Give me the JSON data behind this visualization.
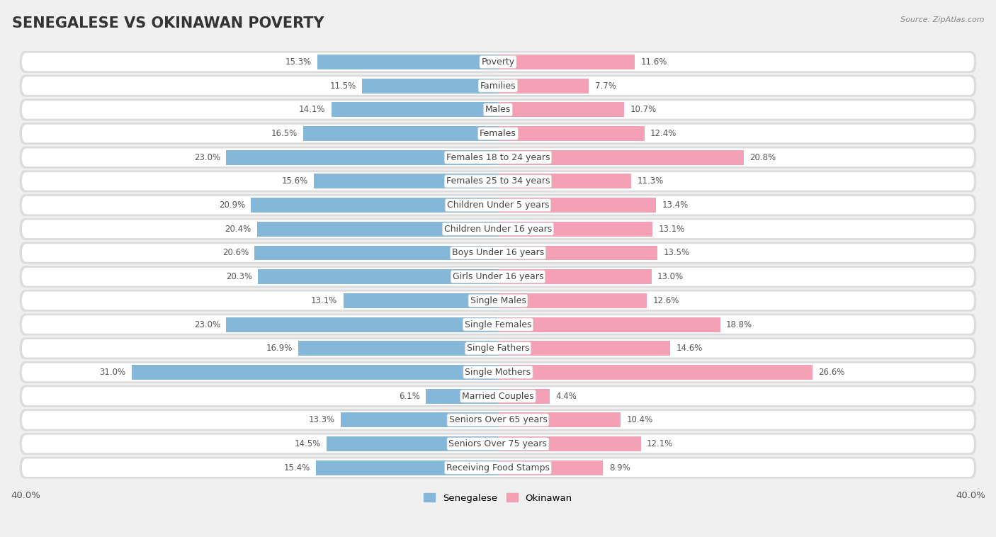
{
  "title": "SENEGALESE VS OKINAWAN POVERTY",
  "source": "Source: ZipAtlas.com",
  "categories": [
    "Poverty",
    "Families",
    "Males",
    "Females",
    "Females 18 to 24 years",
    "Females 25 to 34 years",
    "Children Under 5 years",
    "Children Under 16 years",
    "Boys Under 16 years",
    "Girls Under 16 years",
    "Single Males",
    "Single Females",
    "Single Fathers",
    "Single Mothers",
    "Married Couples",
    "Seniors Over 65 years",
    "Seniors Over 75 years",
    "Receiving Food Stamps"
  ],
  "senegalese": [
    15.3,
    11.5,
    14.1,
    16.5,
    23.0,
    15.6,
    20.9,
    20.4,
    20.6,
    20.3,
    13.1,
    23.0,
    16.9,
    31.0,
    6.1,
    13.3,
    14.5,
    15.4
  ],
  "okinawan": [
    11.6,
    7.7,
    10.7,
    12.4,
    20.8,
    11.3,
    13.4,
    13.1,
    13.5,
    13.0,
    12.6,
    18.8,
    14.6,
    26.6,
    4.4,
    10.4,
    12.1,
    8.9
  ],
  "senegalese_color": "#85b8d8",
  "okinawan_color": "#f4a0b5",
  "background_color": "#f0f0f0",
  "row_bg_color": "#dcdcdc",
  "row_inner_color": "#ffffff",
  "axis_max": 40.0,
  "bar_height": 0.62,
  "title_fontsize": 15,
  "label_fontsize": 9,
  "value_fontsize": 8.5
}
